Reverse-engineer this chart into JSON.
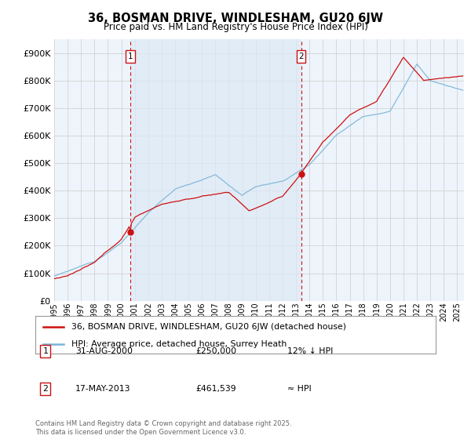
{
  "title1": "36, BOSMAN DRIVE, WINDLESHAM, GU20 6JW",
  "title2": "Price paid vs. HM Land Registry's House Price Index (HPI)",
  "legend_line1": "36, BOSMAN DRIVE, WINDLESHAM, GU20 6JW (detached house)",
  "legend_line2": "HPI: Average price, detached house, Surrey Heath",
  "annotation1_label": "1",
  "annotation1_date": "31-AUG-2000",
  "annotation1_price": "£250,000",
  "annotation1_hpi": "12% ↓ HPI",
  "annotation2_label": "2",
  "annotation2_date": "17-MAY-2013",
  "annotation2_price": "£461,539",
  "annotation2_hpi": "≈ HPI",
  "footnote": "Contains HM Land Registry data © Crown copyright and database right 2025.\nThis data is licensed under the Open Government Licence v3.0.",
  "bg_color": "#ffffff",
  "plot_bg_color": "#eef4fb",
  "grid_color": "#cccccc",
  "hpi_color": "#7ab4d8",
  "price_color": "#cc1111",
  "vline_color": "#cc1111",
  "shade_color": "#ddeaf5",
  "ylim": [
    0,
    950000
  ],
  "yticks": [
    0,
    100000,
    200000,
    300000,
    400000,
    500000,
    600000,
    700000,
    800000,
    900000
  ],
  "sale1_year": 2000.67,
  "sale1_price": 250000,
  "sale2_year": 2013.38,
  "sale2_price": 461539,
  "start_year": 1995,
  "end_year": 2025
}
